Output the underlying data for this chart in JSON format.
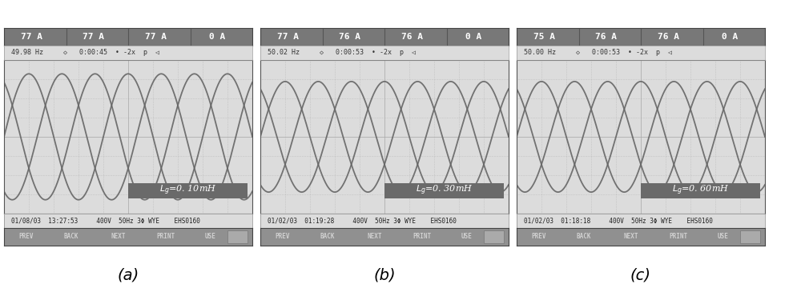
{
  "panels": [
    {
      "header_values": [
        "77 A",
        "77 A",
        "77 A",
        "0 A"
      ],
      "freq": "49.98 Hz",
      "time": "0:00:45",
      "zoom": "-2x",
      "label": "$L_g$=0. 10mH",
      "date_info": "01/08/03  13:27:53     400V  50Hz 3Φ WYE    EHS0160",
      "caption": "(a)",
      "amplitude": 0.82,
      "freq_cycles": 2.5
    },
    {
      "header_values": [
        "77 A",
        "76 A",
        "76 A",
        "0 A"
      ],
      "freq": "50.02 Hz",
      "time": "0:00:53",
      "zoom": "-2x",
      "label": "$L_g$=0. 30mH",
      "date_info": "01/02/03  01:19:28     400V  50Hz 3Φ WYE    EHS0160",
      "caption": "(b)",
      "amplitude": 0.72,
      "freq_cycles": 2.5
    },
    {
      "header_values": [
        "75 A",
        "76 A",
        "76 A",
        "0 A"
      ],
      "freq": "50.00 Hz",
      "time": "0:00:53",
      "zoom": "-2x",
      "label": "$L_g$=0. 60mH",
      "date_info": "01/02/03  01:18:18     400V  50Hz 3Φ WYE    EHS0160",
      "caption": "(c)",
      "amplitude": 0.72,
      "freq_cycles": 2.5
    }
  ],
  "screen_bg": "#dcdcdc",
  "header_bg": "#787878",
  "wave_color": "#666666",
  "grid_color": "#b0b0b0",
  "label_bg": "#6a6a6a",
  "bottom_bar_bg": "#909090",
  "bottom_bar_fg": "#d0d0d0",
  "info_bar_bg": "#dcdcdc"
}
